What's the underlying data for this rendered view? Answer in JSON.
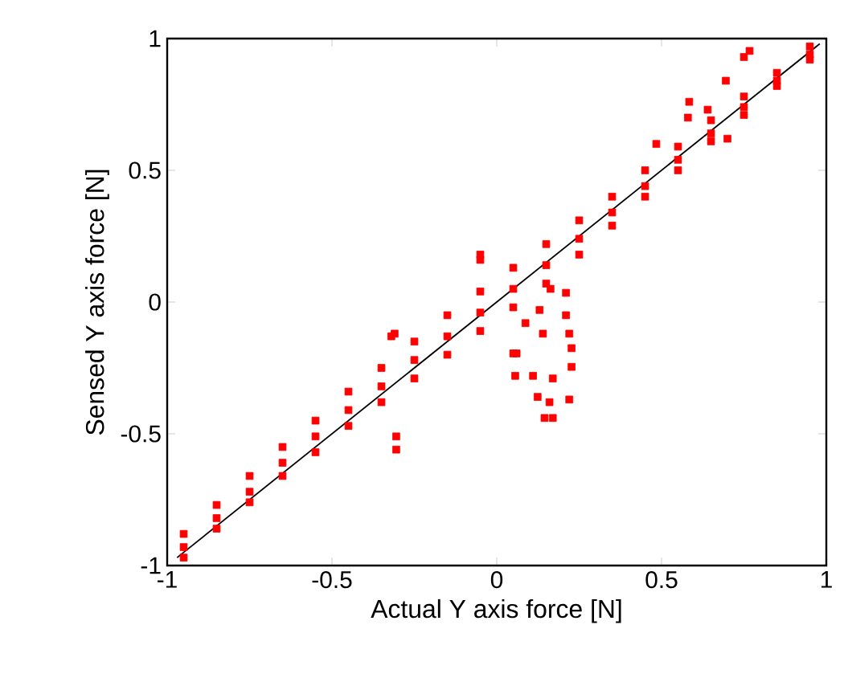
{
  "chart_data": {
    "type": "scatter",
    "xlabel": "Actual Y axis force [N]",
    "ylabel": "Sensed Y axis force [N]",
    "xlim": [
      -1,
      1
    ],
    "ylim": [
      -1,
      1
    ],
    "xticks": [
      -1,
      -0.5,
      0,
      0.5,
      1
    ],
    "yticks": [
      -1,
      -0.5,
      0,
      0.5,
      1
    ],
    "grid": false,
    "series": [
      {
        "color": "#ff0000",
        "marker": "square",
        "x": [
          -0.95,
          -0.95,
          -0.95,
          -0.85,
          -0.85,
          -0.85,
          -0.75,
          -0.75,
          -0.75,
          -0.65,
          -0.65,
          -0.65,
          -0.55,
          -0.55,
          -0.55,
          -0.45,
          -0.45,
          -0.45,
          -0.35,
          -0.35,
          -0.35,
          -0.25,
          -0.25,
          -0.25,
          -0.15,
          -0.15,
          -0.15,
          -0.05,
          -0.05,
          -0.05,
          0.05,
          0.05,
          0.05,
          0.15,
          0.15,
          0.15,
          0.25,
          0.25,
          0.25,
          0.35,
          0.35,
          0.35,
          0.45,
          0.45,
          0.45,
          0.55,
          0.55,
          0.55,
          0.65,
          0.65,
          0.65,
          0.75,
          0.75,
          0.75,
          0.85,
          0.85,
          0.85,
          0.95,
          0.95,
          0.95,
          -0.05,
          -0.05,
          0.05,
          0.06,
          0.056,
          0.087,
          0.13,
          0.14,
          0.11,
          0.17,
          0.124,
          0.16,
          0.145,
          0.17,
          0.21,
          0.21,
          0.22,
          0.227,
          0.227,
          0.22,
          0.163,
          -0.305,
          -0.305,
          -0.31,
          -0.32,
          0.767,
          0.75,
          0.695,
          0.584,
          0.58,
          0.64,
          0.484,
          0.7
        ],
        "values": [
          -0.97,
          -0.93,
          -0.88,
          -0.86,
          -0.82,
          -0.77,
          -0.76,
          -0.72,
          -0.66,
          -0.66,
          -0.61,
          -0.55,
          -0.57,
          -0.51,
          -0.45,
          -0.47,
          -0.41,
          -0.34,
          -0.38,
          -0.32,
          -0.25,
          -0.29,
          -0.22,
          -0.15,
          -0.2,
          -0.13,
          -0.05,
          -0.11,
          -0.04,
          0.04,
          -0.02,
          0.05,
          0.13,
          0.07,
          0.14,
          0.22,
          0.18,
          0.24,
          0.31,
          0.29,
          0.34,
          0.4,
          0.4,
          0.44,
          0.5,
          0.5,
          0.54,
          0.59,
          0.61,
          0.64,
          0.69,
          0.71,
          0.74,
          0.78,
          0.82,
          0.84,
          0.87,
          0.92,
          0.94,
          0.97,
          0.18,
          0.16,
          -0.195,
          -0.195,
          -0.28,
          -0.08,
          -0.03,
          -0.12,
          -0.28,
          -0.29,
          -0.36,
          -0.38,
          -0.44,
          -0.44,
          0.035,
          -0.05,
          -0.12,
          -0.175,
          -0.246,
          -0.37,
          0.05,
          -0.51,
          -0.56,
          -0.12,
          -0.13,
          0.953,
          0.93,
          0.84,
          0.76,
          0.7,
          0.73,
          0.6,
          0.62
        ]
      },
      {
        "type": "line",
        "color": "#000000",
        "x": [
          -0.97,
          0.98
        ],
        "values": [
          -0.97,
          0.98
        ]
      }
    ]
  }
}
